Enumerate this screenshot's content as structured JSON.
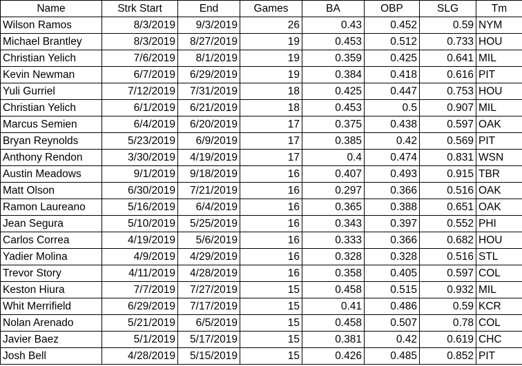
{
  "table": {
    "columns": [
      "Name",
      "Strk Start",
      "End",
      "Games",
      "BA",
      "OBP",
      "SLG",
      "Tm"
    ],
    "rows": [
      [
        "Wilson Ramos",
        "8/3/2019",
        "9/3/2019",
        "26",
        "0.43",
        "0.452",
        "0.59",
        "NYM"
      ],
      [
        "Michael Brantley",
        "8/3/2019",
        "8/27/2019",
        "19",
        "0.453",
        "0.512",
        "0.733",
        "HOU"
      ],
      [
        "Christian Yelich",
        "7/6/2019",
        "8/1/2019",
        "19",
        "0.359",
        "0.425",
        "0.641",
        "MIL"
      ],
      [
        "Kevin Newman",
        "6/7/2019",
        "6/29/2019",
        "19",
        "0.384",
        "0.418",
        "0.616",
        "PIT"
      ],
      [
        "Yuli Gurriel",
        "7/12/2019",
        "7/31/2019",
        "18",
        "0.425",
        "0.447",
        "0.753",
        "HOU"
      ],
      [
        "Christian Yelich",
        "6/1/2019",
        "6/21/2019",
        "18",
        "0.453",
        "0.5",
        "0.907",
        "MIL"
      ],
      [
        "Marcus Semien",
        "6/4/2019",
        "6/20/2019",
        "17",
        "0.375",
        "0.438",
        "0.597",
        "OAK"
      ],
      [
        "Bryan Reynolds",
        "5/23/2019",
        "6/9/2019",
        "17",
        "0.385",
        "0.42",
        "0.569",
        "PIT"
      ],
      [
        "Anthony Rendon",
        "3/30/2019",
        "4/19/2019",
        "17",
        "0.4",
        "0.474",
        "0.831",
        "WSN"
      ],
      [
        "Austin Meadows",
        "9/1/2019",
        "9/18/2019",
        "16",
        "0.407",
        "0.493",
        "0.915",
        "TBR"
      ],
      [
        "Matt Olson",
        "6/30/2019",
        "7/21/2019",
        "16",
        "0.297",
        "0.366",
        "0.516",
        "OAK"
      ],
      [
        "Ramon Laureano",
        "5/16/2019",
        "6/4/2019",
        "16",
        "0.365",
        "0.388",
        "0.651",
        "OAK"
      ],
      [
        "Jean Segura",
        "5/10/2019",
        "5/25/2019",
        "16",
        "0.343",
        "0.397",
        "0.552",
        "PHI"
      ],
      [
        "Carlos Correa",
        "4/19/2019",
        "5/6/2019",
        "16",
        "0.333",
        "0.366",
        "0.682",
        "HOU"
      ],
      [
        "Yadier Molina",
        "4/9/2019",
        "4/29/2019",
        "16",
        "0.328",
        "0.328",
        "0.516",
        "STL"
      ],
      [
        "Trevor Story",
        "4/11/2019",
        "4/28/2019",
        "16",
        "0.358",
        "0.405",
        "0.597",
        "COL"
      ],
      [
        "Keston Hiura",
        "7/7/2019",
        "7/27/2019",
        "15",
        "0.458",
        "0.515",
        "0.932",
        "MIL"
      ],
      [
        "Whit Merrifield",
        "6/29/2019",
        "7/17/2019",
        "15",
        "0.41",
        "0.486",
        "0.59",
        "KCR"
      ],
      [
        "Nolan Arenado",
        "5/21/2019",
        "6/5/2019",
        "15",
        "0.458",
        "0.507",
        "0.78",
        "COL"
      ],
      [
        "Javier Baez",
        "5/1/2019",
        "5/17/2019",
        "15",
        "0.381",
        "0.42",
        "0.619",
        "CHC"
      ],
      [
        "Josh Bell",
        "4/28/2019",
        "5/15/2019",
        "15",
        "0.426",
        "0.485",
        "0.852",
        "PIT"
      ]
    ]
  }
}
